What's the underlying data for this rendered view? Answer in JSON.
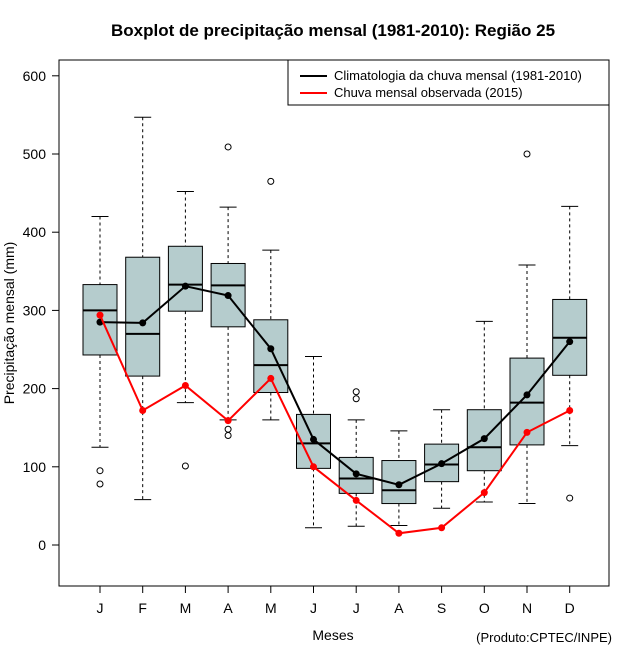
{
  "chart_data": {
    "type": "boxplot",
    "title": "Boxplot de precipitação mensal (1981-2010): Região 25",
    "xlabel": "Meses",
    "ylabel": "Precipitação mensal (mm)",
    "credit": "(Produto:CPTEC/INPE)",
    "ylim": [
      -50,
      620
    ],
    "yticks": [
      0,
      100,
      200,
      300,
      400,
      500,
      600
    ],
    "categories": [
      "J",
      "F",
      "M",
      "A",
      "M",
      "J",
      "J",
      "A",
      "S",
      "O",
      "N",
      "D"
    ],
    "box_color": "#b5cccd",
    "boxes": [
      {
        "min": 125,
        "q1": 243,
        "median": 300,
        "q3": 333,
        "max": 420,
        "outliers": [
          95,
          78
        ]
      },
      {
        "min": 58,
        "q1": 216,
        "median": 270,
        "q3": 368,
        "max": 547,
        "outliers": []
      },
      {
        "min": 182,
        "q1": 299,
        "median": 333,
        "q3": 382,
        "max": 452,
        "outliers": [
          101
        ]
      },
      {
        "min": 160,
        "q1": 279,
        "median": 332,
        "q3": 360,
        "max": 432,
        "outliers": [
          509,
          148,
          140
        ]
      },
      {
        "min": 160,
        "q1": 195,
        "median": 230,
        "q3": 288,
        "max": 377,
        "outliers": [
          465
        ]
      },
      {
        "min": 22,
        "q1": 98,
        "median": 130,
        "q3": 167,
        "max": 241,
        "outliers": []
      },
      {
        "min": 24,
        "q1": 66,
        "median": 85,
        "q3": 112,
        "max": 160,
        "outliers": [
          196,
          187
        ]
      },
      {
        "min": 25,
        "q1": 53,
        "median": 70,
        "q3": 108,
        "max": 146,
        "outliers": []
      },
      {
        "min": 47,
        "q1": 81,
        "median": 103,
        "q3": 129,
        "max": 173,
        "outliers": []
      },
      {
        "min": 55,
        "q1": 95,
        "median": 125,
        "q3": 173,
        "max": 286,
        "outliers": []
      },
      {
        "min": 53,
        "q1": 128,
        "median": 182,
        "q3": 239,
        "max": 358,
        "outliers": [
          500
        ]
      },
      {
        "min": 127,
        "q1": 217,
        "median": 265,
        "q3": 314,
        "max": 433,
        "outliers": [
          60
        ]
      }
    ],
    "series": [
      {
        "name": "Climatologia da chuva mensal (1981-2010)",
        "color": "#000000",
        "values": [
          285,
          284,
          331,
          319,
          251,
          135,
          91,
          77,
          104,
          136,
          192,
          260
        ]
      },
      {
        "name": "Chuva mensal observada (2015)",
        "color": "#ff0000",
        "values": [
          294,
          172,
          204,
          159,
          213,
          100,
          57,
          15,
          22,
          67,
          144,
          172
        ]
      }
    ]
  }
}
